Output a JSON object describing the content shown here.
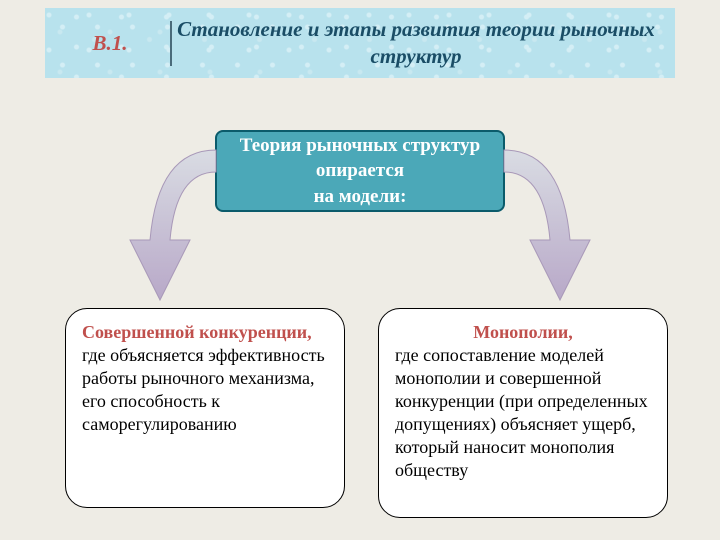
{
  "header": {
    "section_label": "В.1.",
    "section_color": "#c0504d",
    "title": "Становление и этапы развития теории рыночных структур",
    "title_color": "#1a4d66"
  },
  "central": {
    "text": "Теория рыночных структур опирается\nна модели:",
    "bg": "#4ba8b8",
    "border": "#0b5b6b",
    "text_color": "#ffffff"
  },
  "arrows": {
    "fill_start": "#d9dce3",
    "fill_end": "#b8a8c8",
    "stroke": "#a898b8"
  },
  "left_box": {
    "title": "Совершенной конкуренции,",
    "body": "где объясняется эффективность работы рыночного механизма, его способность к саморегулированию",
    "title_color": "#c0504d"
  },
  "right_box": {
    "title": "Монополии,",
    "body": "где сопоставление моделей монополии и совершенной конкуренции (при определенных допущениях) объясняет ущерб, который наносит монополия обществу",
    "title_color": "#c0504d"
  },
  "page_bg": "#eeece5",
  "fonts": {
    "family": "Times New Roman",
    "header_size": 21,
    "central_size": 19,
    "box_size": 18
  }
}
